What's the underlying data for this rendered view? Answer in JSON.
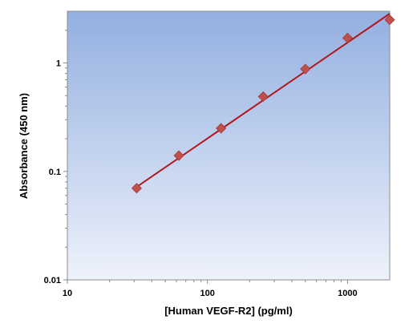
{
  "chart_data": {
    "type": "scatter",
    "title": "",
    "xlabel": "[Human VEGF-R2] (pg/ml)",
    "ylabel": "Absorbance (450 nm)",
    "x_scale": "log",
    "y_scale": "log",
    "xlim": [
      10,
      2000
    ],
    "ylim": [
      0.01,
      3
    ],
    "x_ticks": [
      {
        "value": 10,
        "label": "10"
      },
      {
        "value": 100,
        "label": "100"
      },
      {
        "value": 1000,
        "label": "1000"
      }
    ],
    "y_ticks": [
      {
        "value": 0.01,
        "label": "0.01"
      },
      {
        "value": 0.1,
        "label": "0.1"
      },
      {
        "value": 1,
        "label": "1"
      }
    ],
    "grid": false,
    "legend": "none",
    "series": [
      {
        "x": [
          31.25,
          62.5,
          125,
          250,
          500,
          1000,
          2000
        ],
        "y": [
          0.07,
          0.14,
          0.25,
          0.49,
          0.88,
          1.7,
          2.5
        ],
        "marker": "diamond",
        "color": "#c0504d"
      }
    ],
    "fit_line": {
      "x": [
        31.25,
        2000
      ],
      "y": [
        0.072,
        2.85
      ],
      "color": "#b0181e"
    },
    "background_gradient": [
      "#93afe0",
      "#eef2fb"
    ]
  }
}
